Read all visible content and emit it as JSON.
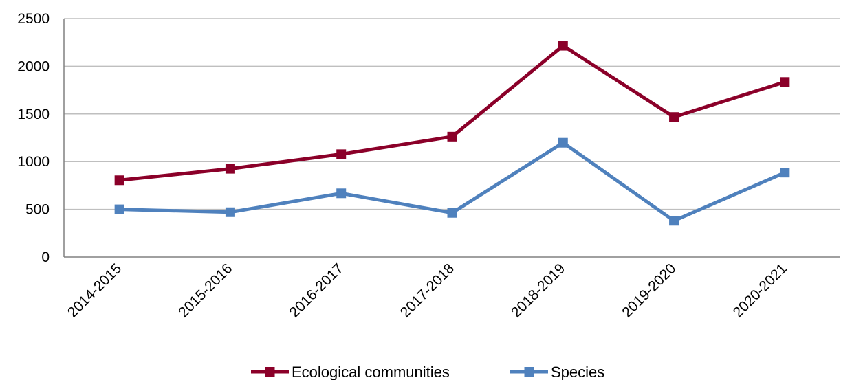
{
  "chart_data": {
    "type": "line",
    "title": "",
    "xlabel": "",
    "ylabel": "",
    "categories": [
      "2014-2015",
      "2015-2016",
      "2016-2017",
      "2017-2018",
      "2018-2019",
      "2019-2020",
      "2020-2021"
    ],
    "series": [
      {
        "name": "Ecological communities",
        "color": "#8B0029",
        "values": [
          805,
          925,
          1078,
          1262,
          2215,
          1468,
          1835
        ]
      },
      {
        "name": "Species",
        "color": "#4F81BD",
        "values": [
          500,
          470,
          668,
          463,
          1198,
          380,
          885
        ]
      }
    ],
    "ylim": [
      0,
      2500
    ],
    "yticks": [
      0,
      500,
      1000,
      1500,
      2000,
      2500
    ],
    "grid": true,
    "legend_position": "bottom",
    "marker": "square"
  }
}
